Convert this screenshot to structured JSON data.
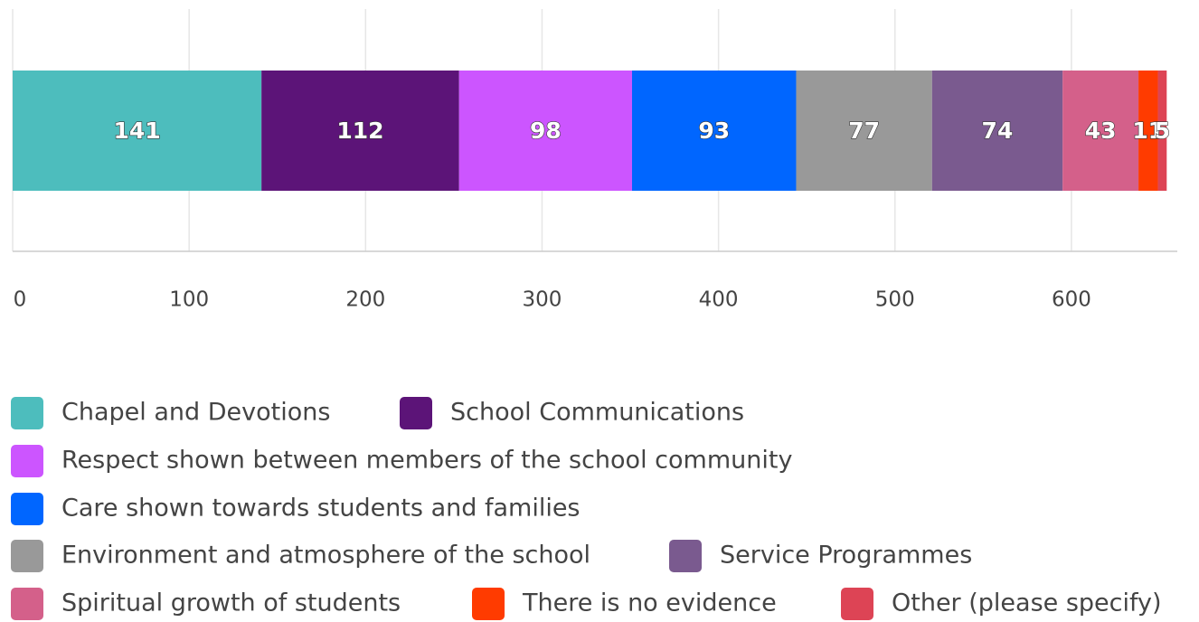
{
  "chart_data": {
    "type": "bar",
    "orientation": "horizontal",
    "stacked": true,
    "series": [
      {
        "name": "Chapel and Devotions",
        "color": "#4dbdbd",
        "values": [
          141
        ]
      },
      {
        "name": "School Communications",
        "color": "#5c1478",
        "values": [
          112
        ]
      },
      {
        "name": "Respect shown between members of the school community",
        "color": "#cc55ff",
        "values": [
          98
        ]
      },
      {
        "name": "Care shown towards students and families",
        "color": "#0066ff",
        "values": [
          93
        ]
      },
      {
        "name": "Environment and atmosphere of the school",
        "color": "#999999",
        "values": [
          77
        ]
      },
      {
        "name": "Service Programmes",
        "color": "#7a5a8f",
        "values": [
          74
        ]
      },
      {
        "name": "Spiritual growth of students",
        "color": "#d4608a",
        "values": [
          43
        ]
      },
      {
        "name": "There is no evidence",
        "color": "#ff3b00",
        "values": [
          11
        ]
      },
      {
        "name": "Other (please specify)",
        "color": "#dd4455",
        "values": [
          5
        ]
      }
    ],
    "xlim": [
      0,
      660
    ],
    "xticks": [
      0,
      100,
      200,
      300,
      400,
      500,
      600
    ],
    "grid": true,
    "legend": "bottom"
  }
}
